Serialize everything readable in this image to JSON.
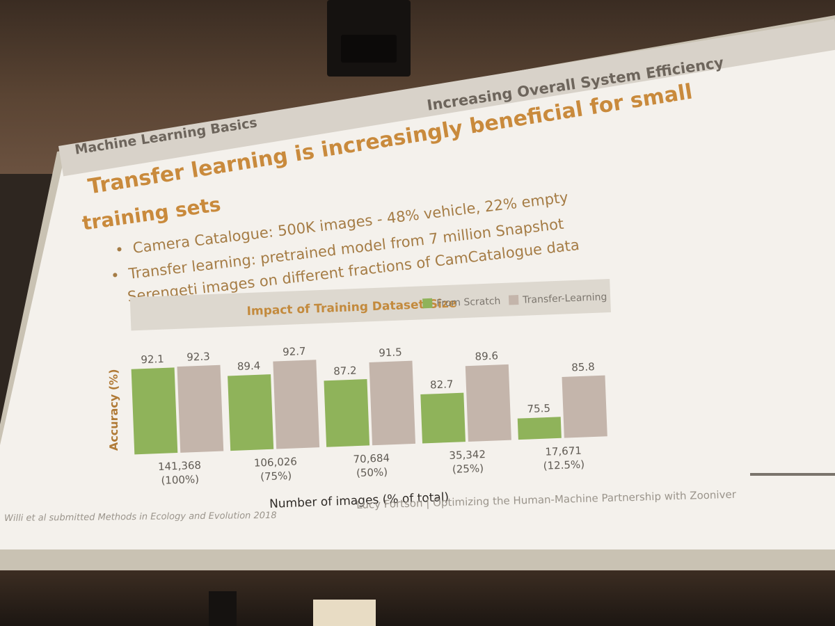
{
  "slide": {
    "section_left": "Machine Learning Basics",
    "section_right": "Increasing Overall System Efficiency",
    "title_line1": "Transfer learning is increasingly beneficial for small",
    "title_line2": "training sets",
    "bullet_glyph": "•",
    "bullet1": "Camera Catalogue:  500K images - 48% vehicle, 22% empty",
    "bullet2_line1": "Transfer learning: pretrained model from 7 million Snapshot",
    "bullet2_line2": "Serengeti images on different fractions of CamCatalogue  data",
    "citation": "Willi et al submitted Methods in Ecology and Evolution 2018",
    "footer": "Lucy Fortson |  Optimizing the Human-Machine Partnership with Zooniver"
  },
  "colors": {
    "from_scratch": "#8fb35a",
    "transfer_learning": "#c4b5ab",
    "title": "#c98a3c",
    "chart_title": "#c38a3d",
    "axis_label": "#b07a36"
  },
  "chart_data": {
    "type": "bar",
    "title": "Impact of Training Dataset-Size",
    "xlabel": "Number of images (% of total)",
    "ylabel": "Accuracy (%)",
    "categories": [
      "141,368 (100%)",
      "106,026 (75%)",
      "70,684 (50%)",
      "35,342 (25%)",
      "17,671 (12.5%)"
    ],
    "category_lines": [
      [
        "141,368",
        "(100%)"
      ],
      [
        "106,026",
        "(75%)"
      ],
      [
        "70,684",
        "(50%)"
      ],
      [
        "35,342",
        "(25%)"
      ],
      [
        "17,671",
        "(12.5%)"
      ]
    ],
    "series": [
      {
        "name": "From Scratch",
        "values": [
          92.1,
          89.4,
          87.2,
          82.7,
          75.5
        ]
      },
      {
        "name": "Transfer-Learning",
        "values": [
          92.3,
          92.7,
          91.5,
          89.6,
          85.8
        ]
      }
    ],
    "value_labels": [
      [
        "92.1",
        "89.4",
        "87.2",
        "82.7",
        "75.5"
      ],
      [
        "92.3",
        "92.7",
        "91.5",
        "89.6",
        "85.8"
      ]
    ],
    "legend": "top-right",
    "grid": false
  }
}
